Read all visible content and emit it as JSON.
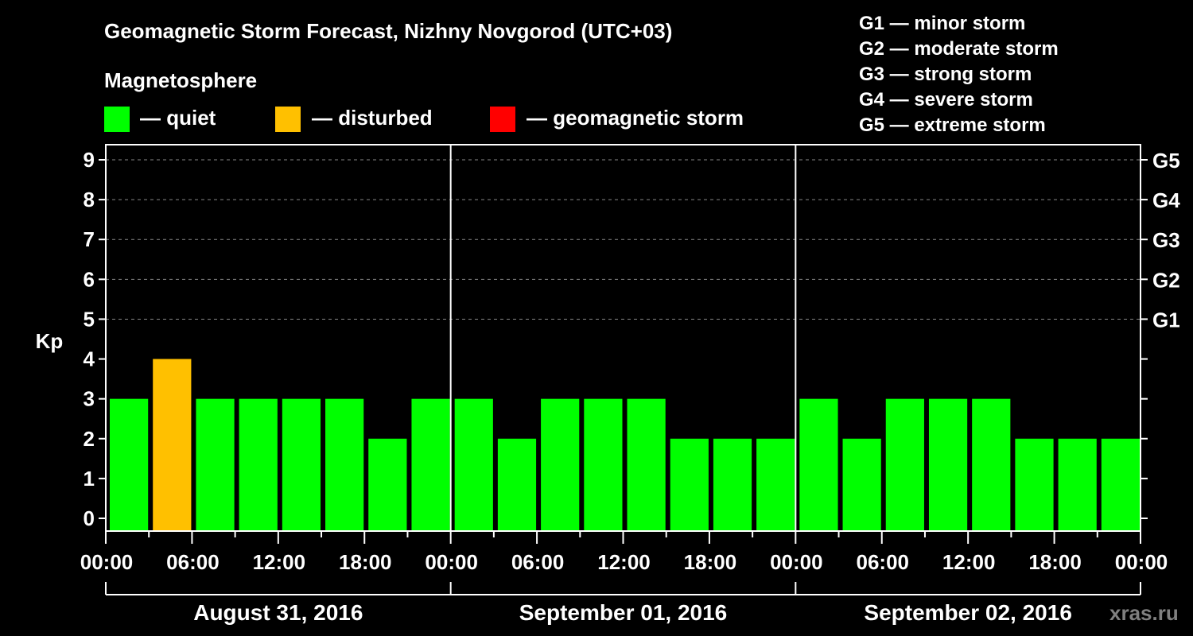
{
  "header": {
    "title": "Geomagnetic Storm Forecast, Nizhny Novgorod (UTC+03)",
    "subtitle": "Magnetosphere"
  },
  "legend": [
    {
      "label": "— quiet",
      "color": "#00ff00"
    },
    {
      "label": "— disturbed",
      "color": "#ffc000"
    },
    {
      "label": "— geomagnetic storm",
      "color": "#ff0000"
    }
  ],
  "g_scale": [
    "G1 — minor storm",
    "G2 — moderate storm",
    "G3 — strong storm",
    "G4 — severe storm",
    "G5 — extreme storm"
  ],
  "watermark": "xras.ru",
  "chart_data": {
    "type": "bar",
    "title": "Geomagnetic Storm Forecast, Nizhny Novgorod (UTC+03)",
    "xlabel": "",
    "ylabel": "Kp",
    "ylim": [
      0,
      9
    ],
    "grid": "dashed horizontal lines at Kp 5-9",
    "yticks": [
      "0",
      "1",
      "2",
      "3",
      "4",
      "5",
      "6",
      "7",
      "8",
      "9"
    ],
    "right_axis_labels": [
      {
        "kp": 5,
        "label": "G1"
      },
      {
        "kp": 6,
        "label": "G2"
      },
      {
        "kp": 7,
        "label": "G3"
      },
      {
        "kp": 8,
        "label": "G4"
      },
      {
        "kp": 9,
        "label": "G5"
      }
    ],
    "xtick_labels": [
      "00:00",
      "06:00",
      "12:00",
      "18:00",
      "00:00",
      "06:00",
      "12:00",
      "18:00",
      "00:00",
      "06:00",
      "12:00",
      "18:00",
      "00:00"
    ],
    "days": [
      "August 31, 2016",
      "September 01, 2016",
      "September 02, 2016"
    ],
    "categories": [
      "Aug 31 00-03",
      "Aug 31 03-06",
      "Aug 31 06-09",
      "Aug 31 09-12",
      "Aug 31 12-15",
      "Aug 31 15-18",
      "Aug 31 18-21",
      "Aug 31 21-24",
      "Sep 01 00-03",
      "Sep 01 03-06",
      "Sep 01 06-09",
      "Sep 01 09-12",
      "Sep 01 12-15",
      "Sep 01 15-18",
      "Sep 01 18-21",
      "Sep 01 21-24",
      "Sep 02 00-03",
      "Sep 02 03-06",
      "Sep 02 06-09",
      "Sep 02 09-12",
      "Sep 02 12-15",
      "Sep 02 15-18",
      "Sep 02 18-21",
      "Sep 02 21-24"
    ],
    "values": [
      3,
      4,
      3,
      3,
      3,
      3,
      2,
      3,
      3,
      2,
      3,
      3,
      3,
      2,
      2,
      2,
      3,
      2,
      3,
      3,
      3,
      2,
      2,
      2
    ],
    "status": [
      "quiet",
      "disturbed",
      "quiet",
      "quiet",
      "quiet",
      "quiet",
      "quiet",
      "quiet",
      "quiet",
      "quiet",
      "quiet",
      "quiet",
      "quiet",
      "quiet",
      "quiet",
      "quiet",
      "quiet",
      "quiet",
      "quiet",
      "quiet",
      "quiet",
      "quiet",
      "quiet",
      "quiet"
    ],
    "colors": {
      "quiet": "#00ff00",
      "disturbed": "#ffc000",
      "storm": "#ff0000"
    },
    "legend": [
      "quiet",
      "disturbed",
      "geomagnetic storm"
    ],
    "legend_position": "top"
  }
}
